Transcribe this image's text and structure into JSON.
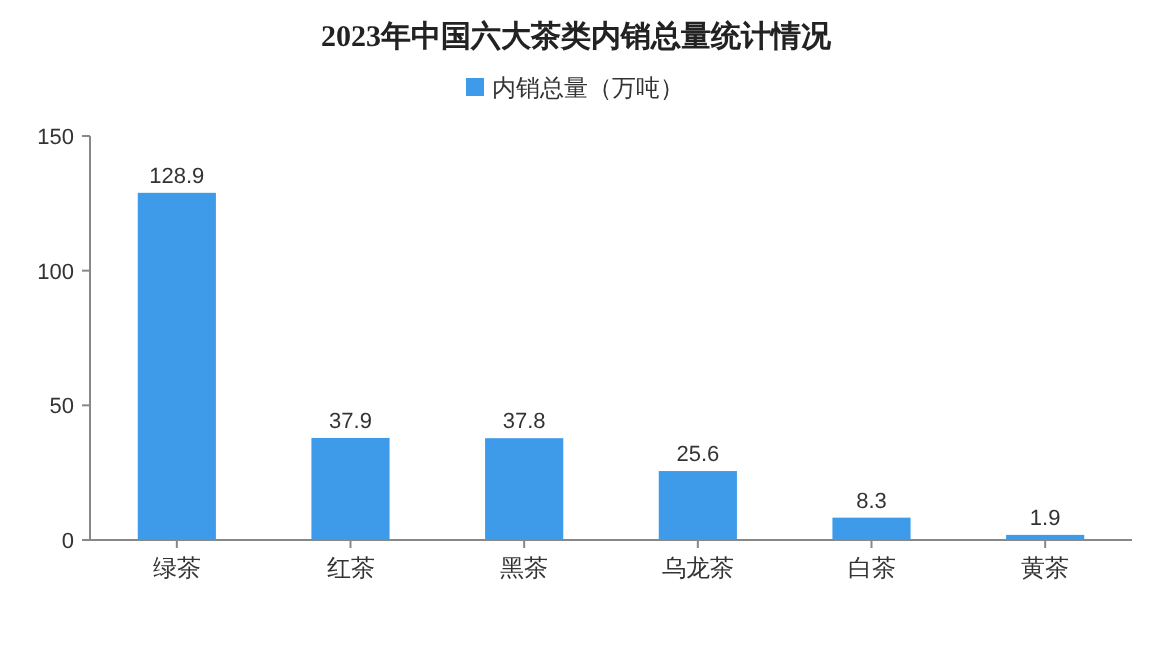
{
  "chart_data": {
    "type": "bar",
    "title": "2023年中国六大茶类内销总量统计情况",
    "categories": [
      "绿茶",
      "红茶",
      "黑茶",
      "乌龙茶",
      "白茶",
      "黄茶"
    ],
    "series": [
      {
        "name": "内销总量（万吨）",
        "color": "#3d9be9",
        "values": [
          128.9,
          37.9,
          37.8,
          25.6,
          8.3,
          1.9
        ]
      }
    ],
    "ylim": [
      0,
      150
    ],
    "yticks": [
      0,
      50,
      100,
      150
    ],
    "data_labels": true,
    "legend": "top",
    "grid": false
  }
}
